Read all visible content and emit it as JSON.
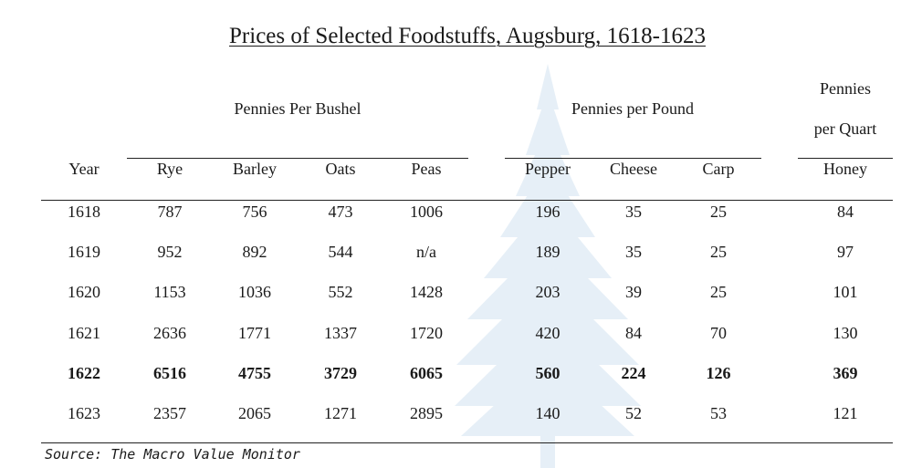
{
  "title": "Prices of Selected Foodstuffs, Augsburg, 1618-1623",
  "group_headers": {
    "bushel": "Pennies Per Bushel",
    "pound": "Pennies per Pound",
    "quart_line1": "Pennies",
    "quart_line2": "per Quart"
  },
  "columns": [
    "Year",
    "Rye",
    "Barley",
    "Oats",
    "Peas",
    "Pepper",
    "Cheese",
    "Carp",
    "Honey"
  ],
  "rows": [
    [
      "1618",
      "787",
      "756",
      "473",
      "1006",
      "196",
      "35",
      "25",
      "84"
    ],
    [
      "1619",
      "952",
      "892",
      "544",
      "n/a",
      "189",
      "35",
      "25",
      "97"
    ],
    [
      "1620",
      "1153",
      "1036",
      "552",
      "1428",
      "203",
      "39",
      "25",
      "101"
    ],
    [
      "1621",
      "2636",
      "1771",
      "1337",
      "1720",
      "420",
      "84",
      "70",
      "130"
    ],
    [
      "1622",
      "6516",
      "4755",
      "3729",
      "6065",
      "560",
      "224",
      "126",
      "369"
    ],
    [
      "1623",
      "2357",
      "2065",
      "1271",
      "2895",
      "140",
      "52",
      "53",
      "121"
    ]
  ],
  "bold_row_index": 4,
  "source": "Source: The Macro Value Monitor",
  "colors": {
    "text": "#1a1a1a",
    "watermark": "#e6eff7"
  }
}
